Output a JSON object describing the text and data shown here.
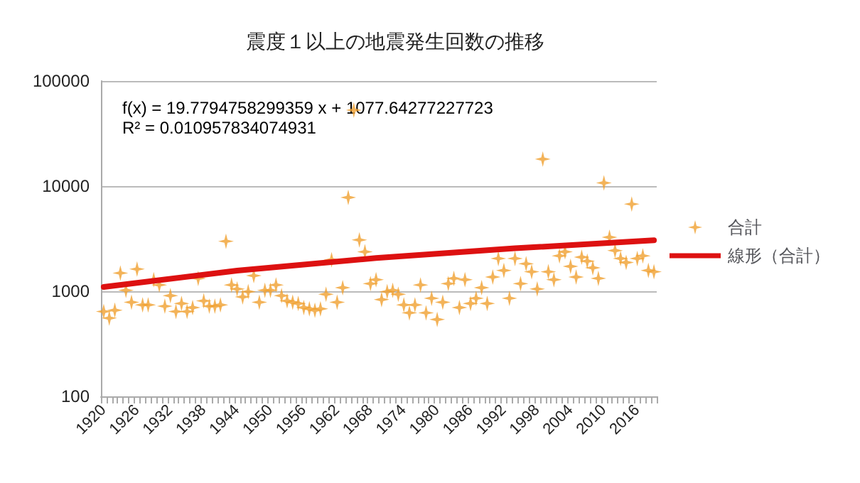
{
  "chart_data": {
    "type": "scatter",
    "title": "震度１以上の地震発生回数の推移",
    "categories": [
      "1920",
      null,
      null,
      null,
      null,
      null,
      "1926",
      null,
      null,
      null,
      null,
      null,
      "1932",
      null,
      null,
      null,
      null,
      null,
      "1938",
      null,
      null,
      null,
      null,
      null,
      "1944",
      null,
      null,
      null,
      null,
      null,
      "1950",
      null,
      null,
      null,
      null,
      null,
      "1956",
      null,
      null,
      null,
      null,
      null,
      "1962",
      null,
      null,
      null,
      null,
      null,
      "1968",
      null,
      null,
      null,
      null,
      null,
      "1974",
      null,
      null,
      null,
      null,
      null,
      "1980",
      null,
      null,
      null,
      null,
      null,
      "1986",
      null,
      null,
      null,
      null,
      null,
      "1992",
      null,
      null,
      null,
      null,
      null,
      "1998",
      null,
      null,
      null,
      null,
      null,
      "2004",
      null,
      null,
      null,
      null,
      null,
      "2010",
      null,
      null,
      null,
      null,
      null,
      "2016",
      null,
      null,
      null
    ],
    "series": [
      {
        "name": "合計",
        "color": "#f0a030",
        "marker": "star",
        "values": [
          641,
          555,
          660,
          1489,
          1021,
          786,
          1624,
          742,
          742,
          1288,
          1148,
          720,
          908,
          641,
          764,
          641,
          700,
          1325,
          809,
          720,
          720,
          742,
          2987,
          1148,
          1050,
          883,
          991,
          1406,
          786,
          1021,
          1021,
          1148,
          908,
          809,
          786,
          764,
          700,
          680,
          660,
          680,
          935,
          1990,
          786,
          1082,
          7800,
          52900,
          3075,
          2370,
          1180,
          1288,
          833,
          991,
          1021,
          935,
          742,
          623,
          742,
          1148,
          623,
          857,
          539,
          786,
          1180,
          1325,
          700,
          1288,
          764,
          857,
          1082,
          764,
          1364,
          2048,
          1578,
          857,
          2048,
          1180,
          1824,
          1532,
          1050,
          18070,
          1532,
          1288,
          2171,
          2370,
          1722,
          1364,
          2109,
          1932,
          1671,
          1325,
          10720,
          3260,
          2438,
          2048,
          1877,
          6740,
          2048,
          2171,
          1578,
          1532
        ]
      },
      {
        "name": "線形（合計）",
        "type": "line",
        "color": "#dd1111",
        "marker": "none",
        "values": [
          1097,
          null,
          null,
          null,
          null,
          null,
          null,
          null,
          null,
          null,
          null,
          null,
          null,
          null,
          null,
          null,
          null,
          null,
          null,
          null,
          null,
          null,
          null,
          null,
          1572,
          null,
          null,
          null,
          null,
          null,
          null,
          null,
          null,
          null,
          null,
          null,
          null,
          null,
          null,
          null,
          null,
          null,
          null,
          null,
          null,
          null,
          null,
          null,
          null,
          2067,
          null,
          null,
          null,
          null,
          null,
          null,
          null,
          null,
          null,
          null,
          null,
          null,
          null,
          null,
          null,
          null,
          null,
          null,
          null,
          null,
          null,
          null,
          null,
          null,
          2561,
          null,
          null,
          null,
          null,
          null,
          null,
          null,
          null,
          null,
          null,
          null,
          null,
          null,
          null,
          null,
          null,
          null,
          null,
          null,
          null,
          null,
          null,
          null,
          null,
          3056
        ]
      }
    ],
    "log": "y",
    "ylim": [
      100,
      100000
    ],
    "yticks": [
      100,
      1000,
      10000,
      100000
    ],
    "grid": "y",
    "legend": "right",
    "annotations": [
      "f(x) = 19.7794758299359 x + 1077.64277227723",
      "R² = 0.010957834074931"
    ]
  }
}
